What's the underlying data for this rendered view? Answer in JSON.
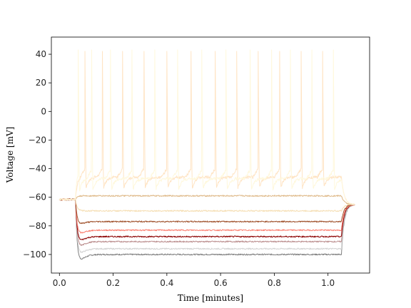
{
  "chart_data": {
    "type": "line",
    "title": "",
    "xlabel": "Time [minutes]",
    "ylabel": "Voltage [mV]",
    "xlim": [
      -0.03,
      1.155
    ],
    "ylim": [
      -113,
      52
    ],
    "xticks": [
      0.0,
      0.2,
      0.4,
      0.6,
      0.8,
      1.0
    ],
    "xtick_labels": [
      "0.0",
      "0.2",
      "0.4",
      "0.6",
      "0.8",
      "1.0"
    ],
    "yticks": [
      -100,
      -80,
      -60,
      -40,
      -20,
      0,
      20,
      40
    ],
    "ytick_labels": [
      "−100",
      "−80",
      "−60",
      "−40",
      "−20",
      "0",
      "20",
      "40"
    ],
    "grid": false,
    "legend": "none",
    "stim_start": 0.06,
    "stim_end": 1.05,
    "sweep_end": 1.1,
    "rest": -61.5,
    "series": [
      {
        "color": "#7f7f7f",
        "steady": -100,
        "peak": -105
      },
      {
        "color": "#d3d3d3",
        "steady": -96,
        "peak": -100
      },
      {
        "color": "#bc8f8f",
        "steady": -91,
        "peak": -95
      },
      {
        "color": "#8b0000",
        "steady": -87.5,
        "peak": -91
      },
      {
        "color": "#fa8072",
        "steady": -83,
        "peak": -86
      },
      {
        "color": "#a0522d",
        "steady": -77,
        "peak": -79
      },
      {
        "color": "#f5deb3",
        "steady": -69.5,
        "peak": -69.5
      },
      {
        "color": "#deb887",
        "steady": -59,
        "peak": -59
      },
      {
        "color": "#ffe4c4",
        "steady": -46,
        "peak": -46,
        "spikes": [
          0.095,
          0.16,
          0.235,
          0.315,
          0.4,
          0.49,
          0.58,
          0.66,
          0.74,
          0.82,
          0.9,
          0.98
        ],
        "spike_peak": 42
      },
      {
        "color": "#fff8dc",
        "steady": -47,
        "peak": -47,
        "spikes": [
          0.07,
          0.12,
          0.19,
          0.27,
          0.355,
          0.44,
          0.53,
          0.62,
          0.71,
          0.79,
          0.86,
          0.94,
          1.02
        ],
        "spike_peak": 43
      }
    ]
  }
}
